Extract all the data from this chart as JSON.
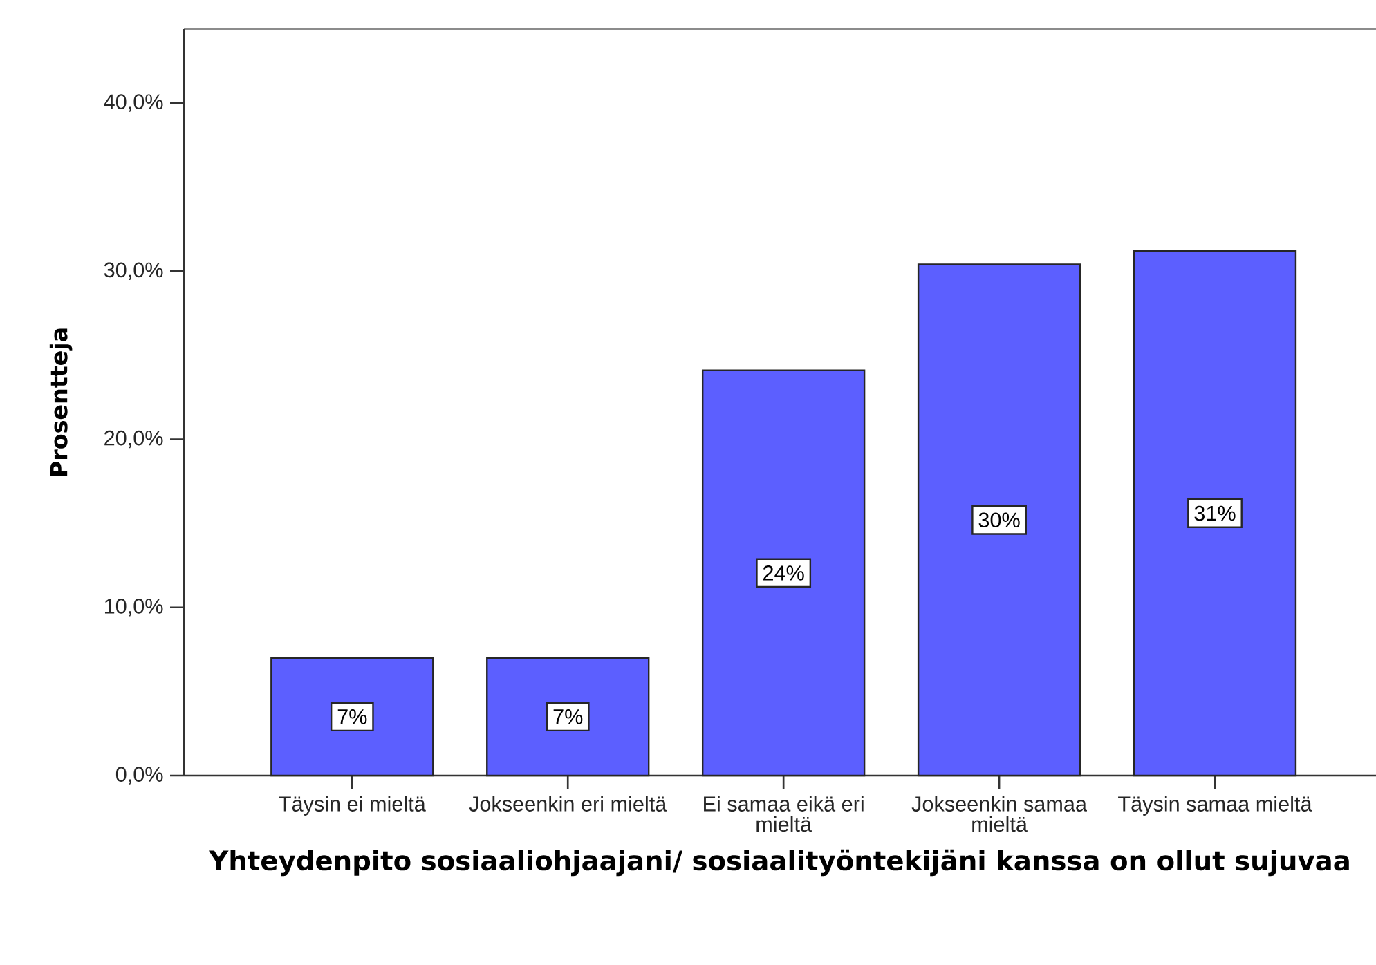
{
  "chart_data": {
    "type": "bar",
    "xlabel": "Yhteydenpito sosiaaliohjaajani/ sosiaalityöntekijäni kanssa on ollut sujuvaa",
    "ylabel": "Prosentteja",
    "categories": [
      "Täysin ei mieltä",
      "Jokseenkin eri mieltä",
      "Ei samaa eikä eri mieltä",
      "Jokseenkin samaa mieltä",
      "Täysin samaa mieltä"
    ],
    "values": [
      7.0,
      7.0,
      24.1,
      30.4,
      31.2
    ],
    "value_labels": [
      "7%",
      "7%",
      "24%",
      "30%",
      "31%"
    ],
    "color": "#5c5fff",
    "ylim": [
      0,
      44.4
    ],
    "yticks": [
      {
        "value": 0,
        "label": "0,0%"
      },
      {
        "value": 10,
        "label": "10,0%"
      },
      {
        "value": 20,
        "label": "20,0%"
      },
      {
        "value": 30,
        "label": "30,0%"
      },
      {
        "value": 40,
        "label": "40,0%"
      }
    ]
  }
}
